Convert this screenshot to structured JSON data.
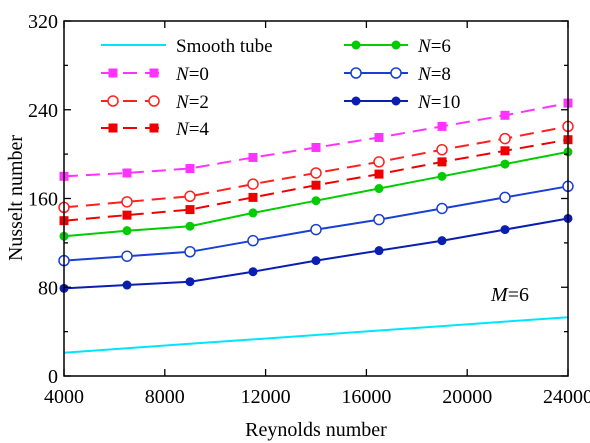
{
  "chart_data": {
    "type": "line",
    "title": "",
    "xlabel": "Reynolds number",
    "ylabel": "Nusselt number",
    "xlim": [
      4000,
      24000
    ],
    "ylim": [
      0,
      320
    ],
    "xticks": [
      4000,
      8000,
      12000,
      16000,
      20000,
      24000
    ],
    "yticks": [
      0,
      80,
      160,
      240,
      320
    ],
    "x": [
      4000,
      6500,
      9000,
      11500,
      14000,
      16500,
      19000,
      21500,
      24000
    ],
    "grid": false,
    "legend_position": "top-left",
    "annotation": {
      "italic": "M",
      "rest": "=6"
    },
    "series": [
      {
        "name": "Smooth tube",
        "label": {
          "italic": "",
          "rest": "Smooth tube"
        },
        "color": "#00e5ff",
        "dashed": false,
        "marker": "none",
        "values": [
          21,
          25,
          29,
          33,
          37,
          41,
          45,
          49,
          53
        ]
      },
      {
        "name": "N=0",
        "label": {
          "italic": "N",
          "rest": "=0"
        },
        "color": "#ff33ff",
        "dashed": true,
        "marker": "square",
        "values": [
          180,
          183,
          187,
          197,
          206,
          215,
          225,
          235,
          246
        ]
      },
      {
        "name": "N=2",
        "label": {
          "italic": "N",
          "rest": "=2"
        },
        "color": "#ff2020",
        "dashed": true,
        "marker": "open-circle",
        "values": [
          152,
          157,
          162,
          173,
          183,
          193,
          204,
          214,
          225
        ]
      },
      {
        "name": "N=4",
        "label": {
          "italic": "N",
          "rest": "=4"
        },
        "color": "#ee0000",
        "dashed": true,
        "marker": "square",
        "values": [
          140,
          145,
          150,
          161,
          172,
          182,
          193,
          203,
          213
        ]
      },
      {
        "name": "N=6",
        "label": {
          "italic": "N",
          "rest": "=6"
        },
        "color": "#00cc00",
        "dashed": false,
        "marker": "filled-circle",
        "values": [
          126,
          131,
          135,
          147,
          158,
          169,
          180,
          191,
          202
        ]
      },
      {
        "name": "N=8",
        "label": {
          "italic": "N",
          "rest": "=8"
        },
        "color": "#1a3fd6",
        "dashed": false,
        "marker": "open-circle",
        "values": [
          104,
          108,
          112,
          122,
          132,
          141,
          151,
          161,
          171
        ]
      },
      {
        "name": "N=10",
        "label": {
          "italic": "N",
          "rest": "=10"
        },
        "color": "#0a1fb0",
        "dashed": false,
        "marker": "filled-circle",
        "values": [
          79,
          82,
          85,
          94,
          104,
          113,
          122,
          132,
          142
        ]
      }
    ]
  }
}
